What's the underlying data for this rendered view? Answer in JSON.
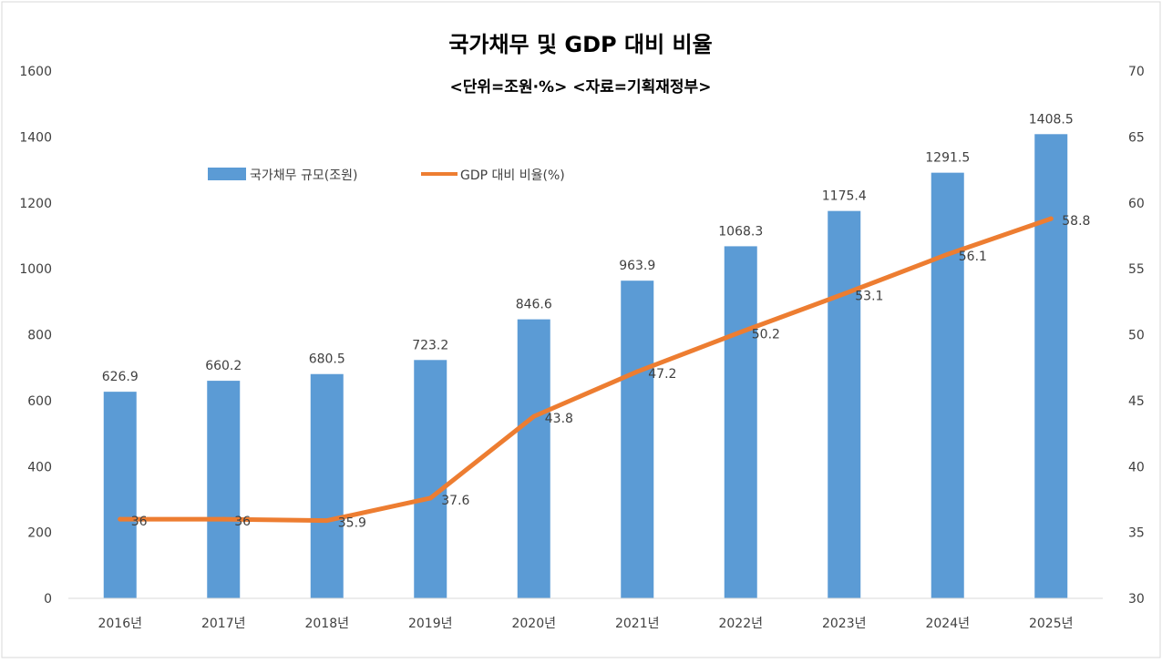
{
  "chart_data": {
    "type": "bar",
    "title": "국가채무 및 GDP 대비 비율",
    "subtitle": "<단위=조원·%>  <자료=기획재정부>",
    "categories": [
      "2016년",
      "2017년",
      "2018년",
      "2019년",
      "2020년",
      "2021년",
      "2022년",
      "2023년",
      "2024년",
      "2025년"
    ],
    "series": [
      {
        "name": "국가채무 규모(조원)",
        "kind": "bar",
        "axis": "left",
        "values": [
          626.9,
          660.2,
          680.5,
          723.2,
          846.6,
          963.9,
          1068.3,
          1175.4,
          1291.5,
          1408.5
        ],
        "labels": [
          "626.9",
          "660.2",
          "680.5",
          "723.2",
          "846.6",
          "963.9",
          "1068.3",
          "1175.4",
          "1291.5",
          "1408.5"
        ]
      },
      {
        "name": "GDP 대비 비율(%)",
        "kind": "line",
        "axis": "right",
        "values": [
          36,
          36,
          35.9,
          37.6,
          43.8,
          47.2,
          50.2,
          53.1,
          56.1,
          58.8
        ],
        "labels": [
          "36",
          "36",
          "35.9",
          "37.6",
          "43.8",
          "47.2",
          "50.2",
          "53.1",
          "56.1",
          "58.8"
        ]
      }
    ],
    "y_left": {
      "ylim": [
        0,
        1600
      ],
      "ticks": [
        "0",
        "200",
        "400",
        "600",
        "800",
        "1000",
        "1200",
        "1400",
        "1600"
      ]
    },
    "y_right": {
      "ylim": [
        30,
        70
      ],
      "ticks": [
        "30",
        "35",
        "40",
        "45",
        "50",
        "55",
        "60",
        "65",
        "70"
      ]
    },
    "grid": false,
    "legend": "top-left",
    "colors": {
      "bar": "#5b9bd5",
      "line": "#ed7d31",
      "text": "#404040"
    }
  }
}
